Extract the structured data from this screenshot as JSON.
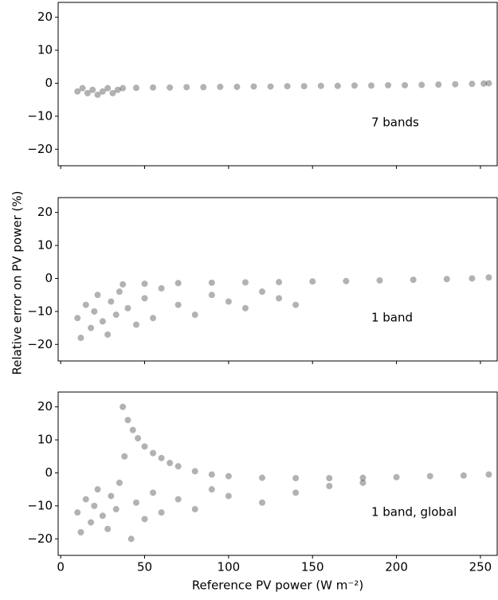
{
  "chart_data": [
    {
      "type": "scatter",
      "annotation": "7 bands",
      "color": "#000000",
      "x": [
        10,
        13,
        16,
        19,
        22,
        25,
        28,
        31,
        34,
        37,
        45,
        55,
        65,
        75,
        85,
        95,
        105,
        115,
        125,
        135,
        145,
        155,
        165,
        175,
        185,
        195,
        205,
        215,
        225,
        235,
        245,
        252,
        255
      ],
      "y": [
        -2.5,
        -1.5,
        -3,
        -2,
        -3.5,
        -2.5,
        -1.5,
        -3,
        -2,
        -1.5,
        -1.4,
        -1.3,
        -1.3,
        -1.2,
        -1.2,
        -1.1,
        -1.1,
        -1,
        -1,
        -0.9,
        -0.9,
        -0.8,
        -0.8,
        -0.7,
        -0.7,
        -0.6,
        -0.6,
        -0.5,
        -0.4,
        -0.3,
        -0.2,
        -0.1,
        0
      ],
      "xlim": [
        -1.5,
        260
      ],
      "xticks": [
        0,
        50,
        100,
        150,
        200,
        250
      ],
      "ylim": [
        -25,
        24.5
      ],
      "yticks": [
        {
          "value": -20,
          "label": "−20"
        },
        {
          "value": -10,
          "label": "−10"
        },
        0,
        10,
        20
      ]
    },
    {
      "type": "scatter",
      "annotation": "1 band",
      "ylabel": "Relative error on PV power (%)",
      "color": "#000000",
      "x": [
        10,
        12,
        15,
        18,
        20,
        22,
        25,
        28,
        30,
        33,
        35,
        40,
        45,
        50,
        55,
        60,
        70,
        80,
        90,
        100,
        110,
        120,
        130,
        140,
        37,
        50,
        70,
        90,
        110,
        130,
        150,
        170,
        190,
        210,
        230,
        245,
        255
      ],
      "y": [
        -12,
        -18,
        -8,
        -15,
        -10,
        -5,
        -13,
        -17,
        -7,
        -11,
        -4,
        -9,
        -14,
        -6,
        -12,
        -3,
        -8,
        -11,
        -5,
        -7,
        -9,
        -4,
        -6,
        -8,
        -1.8,
        -1.6,
        -1.4,
        -1.3,
        -1.2,
        -1.1,
        -0.9,
        -0.8,
        -0.6,
        -0.4,
        -0.2,
        0,
        0.3
      ],
      "xlim": [
        -1.5,
        260
      ],
      "xticks": [
        0,
        50,
        100,
        150,
        200,
        250
      ],
      "ylim": [
        -25,
        24.5
      ],
      "yticks": [
        {
          "value": -20,
          "label": "−20"
        },
        {
          "value": -10,
          "label": "−10"
        },
        0,
        10,
        20
      ]
    },
    {
      "type": "scatter",
      "annotation": "1 band, global",
      "xlabel": "Reference PV power (W m⁻²)",
      "color": "#000000",
      "x": [
        37,
        40,
        43,
        46,
        50,
        55,
        60,
        65,
        70,
        80,
        90,
        100,
        120,
        140,
        160,
        180,
        200,
        220,
        240,
        255,
        10,
        12,
        15,
        18,
        20,
        22,
        25,
        28,
        30,
        33,
        35,
        38,
        42,
        45,
        50,
        55,
        60,
        70,
        80,
        90,
        100,
        120,
        140,
        160,
        180
      ],
      "y": [
        20,
        16,
        13,
        10.5,
        8,
        6,
        4.5,
        3,
        2,
        0.5,
        -0.5,
        -1,
        -1.5,
        -1.6,
        -1.6,
        -1.5,
        -1.3,
        -1,
        -0.8,
        -0.5,
        -12,
        -18,
        -8,
        -15,
        -10,
        -5,
        -13,
        -17,
        -7,
        -11,
        -3,
        5,
        -20,
        -9,
        -14,
        -6,
        -12,
        -8,
        -11,
        -5,
        -7,
        -9,
        -6,
        -4,
        -3
      ],
      "xlim": [
        -1.5,
        260
      ],
      "xticks": [
        0,
        50,
        100,
        150,
        200,
        250
      ],
      "ylim": [
        -25,
        24.5
      ],
      "yticks": [
        {
          "value": -20,
          "label": "−20"
        },
        {
          "value": -10,
          "label": "−10"
        },
        0,
        10,
        20
      ]
    }
  ]
}
